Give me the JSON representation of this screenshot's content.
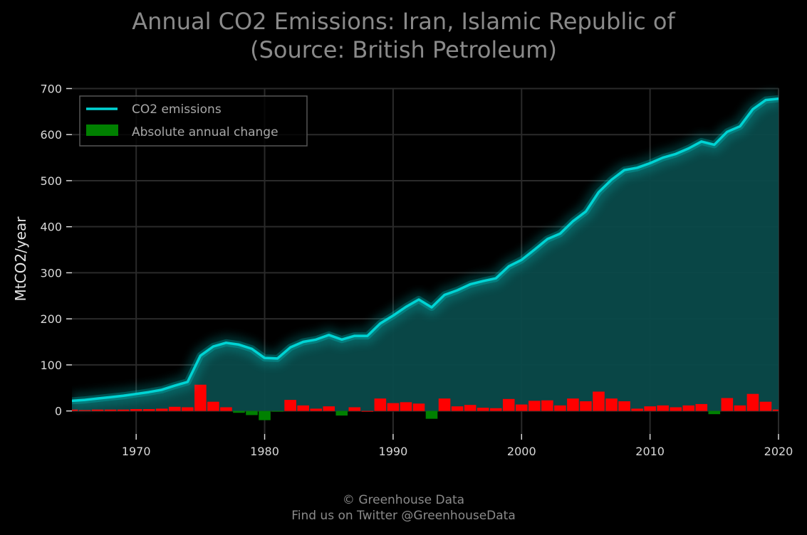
{
  "title_line1": "Annual CO2 Emissions: Iran, Islamic Republic of",
  "title_line2": "(Source: British Petroleum)",
  "footer_line1": "© Greenhouse Data",
  "footer_line2": "Find us on Twitter @GreenhouseData",
  "colors": {
    "background": "#000000",
    "line": "#00d4d4",
    "fill": "#0a4a4a",
    "positive_change": "#ff0000",
    "negative_change": "#008000",
    "grid": "#2a2a2a"
  },
  "chart_data": {
    "type": "line",
    "title": "Annual CO2 Emissions: Iran, Islamic Republic of (Source: British Petroleum)",
    "xlabel": "",
    "ylabel": "MtCO2/year",
    "xlim": [
      1965,
      2020
    ],
    "ylim": [
      -50,
      710
    ],
    "x_ticks": [
      "1970",
      "1980",
      "1990",
      "2000",
      "2010",
      "2020"
    ],
    "y_ticks": [
      "0",
      "100",
      "200",
      "300",
      "400",
      "500",
      "600",
      "700"
    ],
    "grid": true,
    "legend_position": "top-left",
    "legend": [
      "CO2 emissions",
      "Absolute annual change"
    ],
    "x": [
      1965,
      1966,
      1967,
      1968,
      1969,
      1970,
      1971,
      1972,
      1973,
      1974,
      1975,
      1976,
      1977,
      1978,
      1979,
      1980,
      1981,
      1982,
      1983,
      1984,
      1985,
      1986,
      1987,
      1988,
      1989,
      1990,
      1991,
      1992,
      1993,
      1994,
      1995,
      1996,
      1997,
      1998,
      1999,
      2000,
      2001,
      2002,
      2003,
      2004,
      2005,
      2006,
      2007,
      2008,
      2009,
      2010,
      2011,
      2012,
      2013,
      2014,
      2015,
      2016,
      2017,
      2018,
      2019,
      2020
    ],
    "series": [
      {
        "name": "CO2 emissions",
        "values": [
          22,
          24,
          27,
          30,
          33,
          37,
          41,
          46,
          55,
          63,
          120,
          140,
          148,
          144,
          135,
          115,
          114,
          138,
          150,
          155,
          165,
          155,
          163,
          163,
          190,
          207,
          226,
          242,
          225,
          252,
          262,
          275,
          282,
          288,
          314,
          328,
          350,
          373,
          385,
          412,
          433,
          475,
          502,
          523,
          528,
          538,
          550,
          558,
          570,
          585,
          578,
          606,
          618,
          655,
          675,
          678
        ]
      },
      {
        "name": "Absolute annual change",
        "values": [
          3,
          2,
          3,
          3,
          3,
          4,
          4,
          5,
          9,
          8,
          57,
          20,
          8,
          -4,
          -9,
          -20,
          -1,
          24,
          12,
          5,
          10,
          -10,
          8,
          0,
          27,
          17,
          19,
          16,
          -17,
          27,
          10,
          13,
          7,
          6,
          26,
          14,
          22,
          23,
          12,
          27,
          21,
          42,
          27,
          21,
          5,
          10,
          12,
          8,
          12,
          15,
          -7,
          28,
          12,
          37,
          20,
          3
        ]
      }
    ]
  }
}
